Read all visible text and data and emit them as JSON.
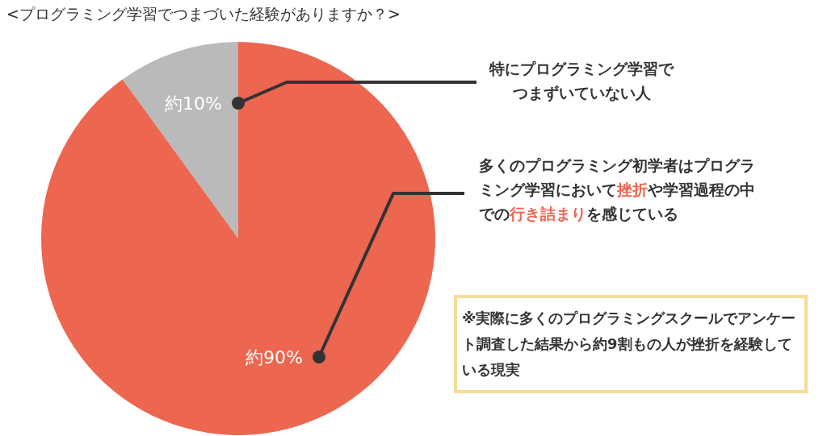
{
  "chart_data": {
    "type": "pie",
    "title": "<プログラミング学習でつまづいた経験がありますか？>",
    "categories": [
      "特にプログラミング学習でつまずいていない人",
      "多くのプログラミング初学者はプログラミング学習において**挫折**や学習過程の中での**行き詰まり**を感じている"
    ],
    "values": [
      10,
      90
    ],
    "colors": [
      "#bababa",
      "#ec6650"
    ],
    "value_labels": [
      "約10%",
      "約90%"
    ],
    "annotations": [
      "※実際に多くのプログラミングスクールでアンケート調査した結果から約9割もの人が挫折を経験している現実"
    ]
  }
}
